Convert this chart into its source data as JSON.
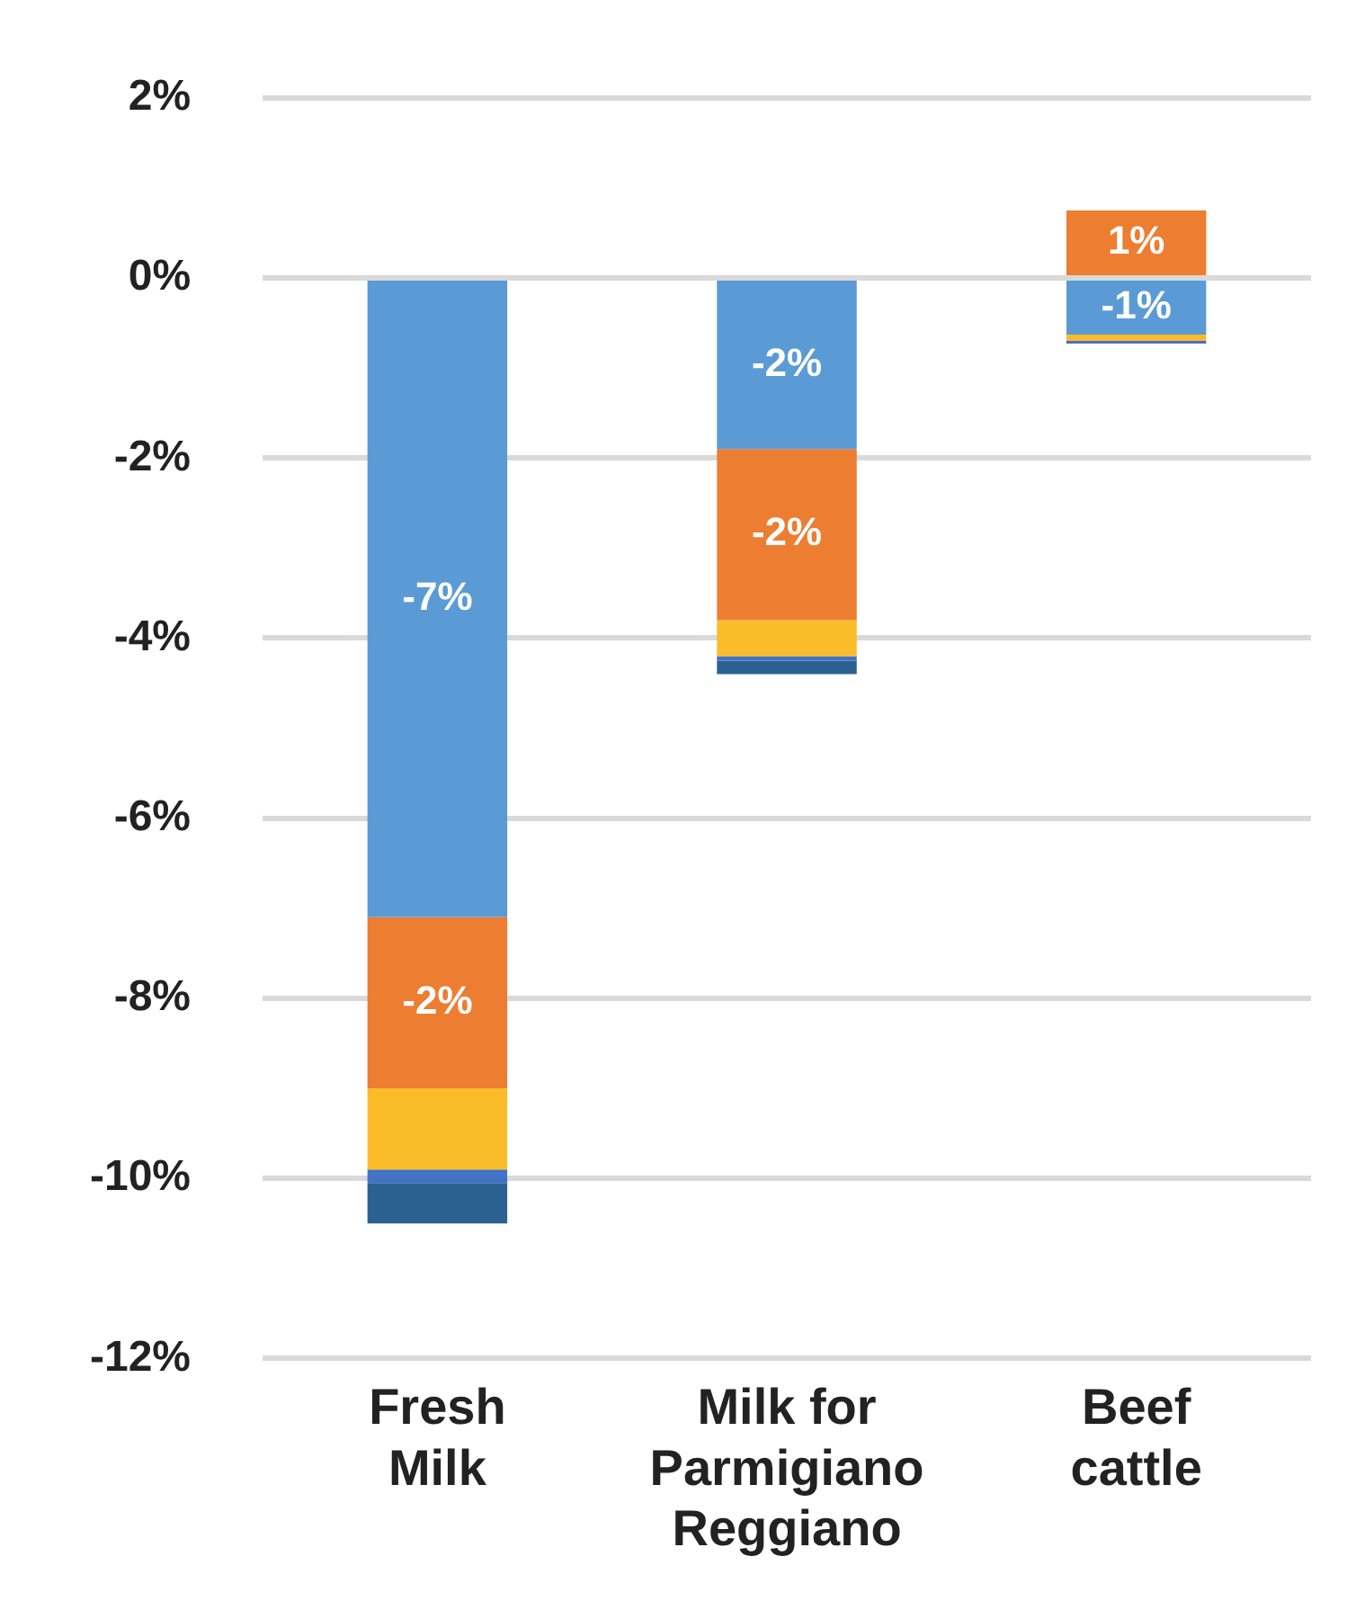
{
  "chart_data": {
    "type": "bar",
    "stacked": true,
    "categories": [
      "Fresh Milk",
      "Milk for Parmigiano Reggiano",
      "Beef cattle"
    ],
    "series": [
      {
        "color": "#5b9bd5",
        "values": [
          -7.1,
          -1.9,
          -0.63
        ],
        "value_labels": [
          "-7%",
          "-2%",
          "-1%"
        ]
      },
      {
        "color": "#ed7d31",
        "values": [
          -1.9,
          -1.9,
          0.75
        ],
        "value_labels": [
          "-2%",
          "-2%",
          "1%"
        ]
      },
      {
        "color": "#fbbc2a",
        "values": [
          -0.9,
          -0.4,
          -0.07
        ],
        "value_labels": [
          null,
          null,
          null
        ]
      },
      {
        "color": "#4472c4",
        "values": [
          -0.15,
          -0.05,
          -0.03
        ],
        "value_labels": [
          null,
          null,
          null
        ]
      },
      {
        "color": "#2a6190",
        "values": [
          -0.45,
          -0.15,
          null
        ],
        "value_labels": [
          null,
          null,
          null
        ]
      }
    ],
    "ylim": [
      -12,
      2
    ],
    "yticks": [
      {
        "value": -12,
        "label": "-12%"
      },
      {
        "value": -10,
        "label": "-10%"
      },
      {
        "value": -8,
        "label": "-8%"
      },
      {
        "value": -6,
        "label": "-6%"
      },
      {
        "value": -4,
        "label": "-4%"
      },
      {
        "value": -2,
        "label": "-2%"
      },
      {
        "value": 0,
        "label": "0%"
      },
      {
        "value": 2,
        "label": "2%"
      }
    ],
    "grid": "y",
    "legend": false
  }
}
